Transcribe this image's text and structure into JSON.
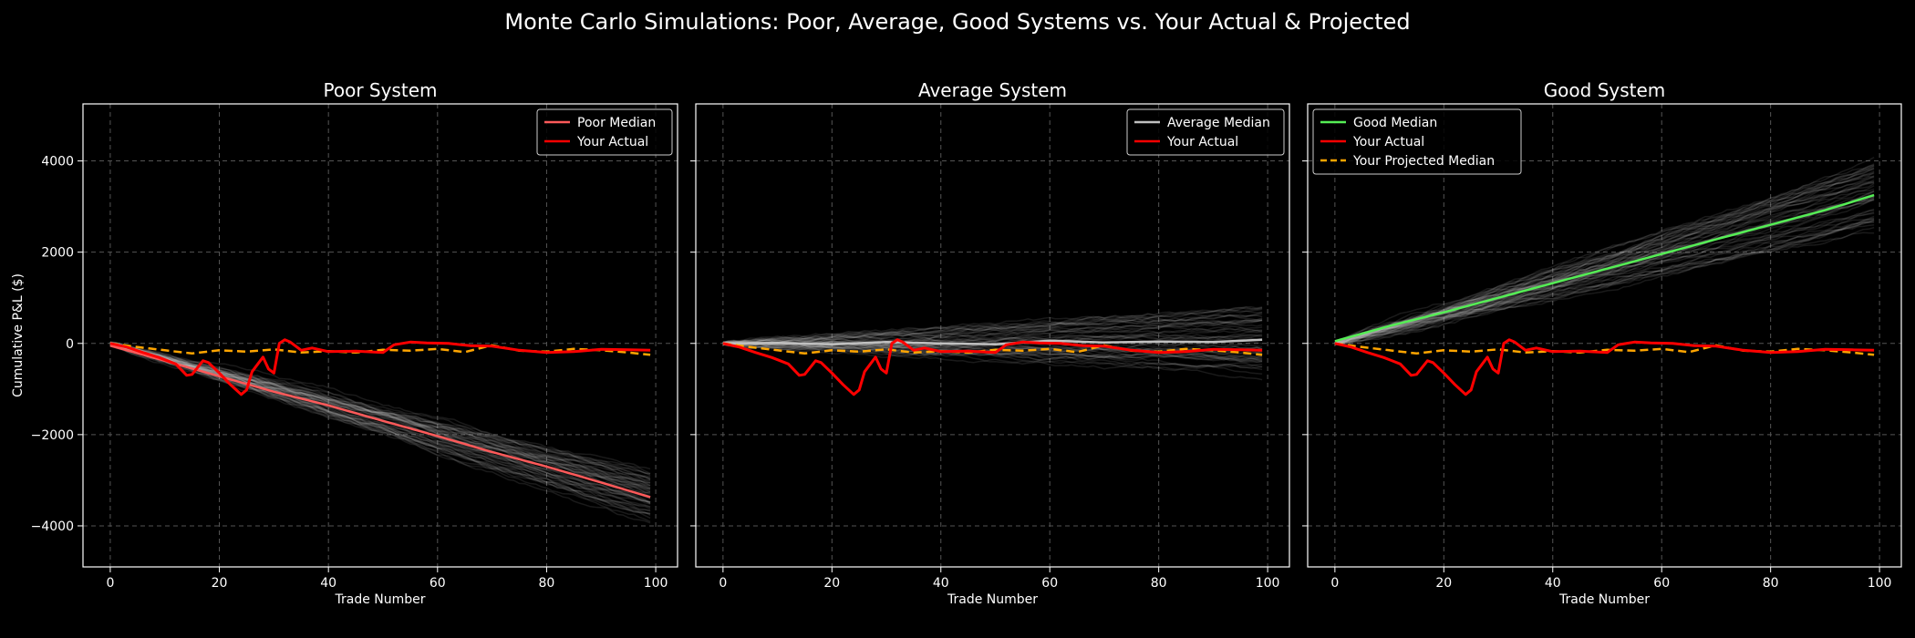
{
  "figure": {
    "title": "Monte Carlo Simulations: Poor, Average, Good Systems vs. Your Actual & Projected",
    "background": "#000000",
    "grid_color": "#555555",
    "sim_color": "#c8c8c8"
  },
  "chart_data": [
    {
      "type": "line",
      "title": "Poor System",
      "xlabel": "Trade Number",
      "ylabel": "Cumulative P&L ($)",
      "xlim": [
        -5,
        104
      ],
      "ylim": [
        -4900,
        5250
      ],
      "xticks": [
        0,
        20,
        40,
        60,
        80,
        100
      ],
      "yticks": [
        -4000,
        -2000,
        0,
        2000,
        4000
      ],
      "grid": true,
      "legend_position": "top-right",
      "simulations": {
        "count": 50,
        "start": 0,
        "end_median": -3370,
        "end_spread": 600
      },
      "series": [
        {
          "name": "Poor Median",
          "color": "#ff5a5a",
          "style": "solid",
          "x": [
            0,
            10,
            20,
            30,
            40,
            50,
            60,
            70,
            80,
            90,
            99
          ],
          "y": [
            -50,
            -380,
            -720,
            -1060,
            -1360,
            -1700,
            -2030,
            -2380,
            -2700,
            -3050,
            -3370
          ]
        },
        {
          "name": "Your Actual",
          "color": "#ff0000",
          "style": "solid",
          "ref": "actual"
        }
      ],
      "unlabeled_series": [
        {
          "color": "#ffa500",
          "style": "dashed",
          "ref": "projected"
        }
      ]
    },
    {
      "type": "line",
      "title": "Average System",
      "xlabel": "Trade Number",
      "ylabel": "",
      "xlim": [
        -5,
        104
      ],
      "ylim": [
        -4900,
        5250
      ],
      "xticks": [
        0,
        20,
        40,
        60,
        80,
        100
      ],
      "yticks": [
        -4000,
        -2000,
        0,
        2000,
        4000
      ],
      "grid": true,
      "legend_position": "top-right",
      "simulations": {
        "count": 50,
        "start": 0,
        "end_median": 80,
        "end_spread": 700
      },
      "series": [
        {
          "name": "Average Median",
          "color": "#c0c0c0",
          "style": "solid",
          "x": [
            0,
            10,
            20,
            30,
            40,
            50,
            60,
            70,
            80,
            90,
            99
          ],
          "y": [
            0,
            10,
            -20,
            30,
            0,
            -20,
            60,
            20,
            40,
            30,
            80
          ]
        },
        {
          "name": "Your Actual",
          "color": "#ff0000",
          "style": "solid",
          "ref": "actual"
        }
      ],
      "unlabeled_series": [
        {
          "color": "#ffa500",
          "style": "dashed",
          "ref": "projected"
        }
      ]
    },
    {
      "type": "line",
      "title": "Good System",
      "xlabel": "Trade Number",
      "ylabel": "",
      "xlim": [
        -5,
        104
      ],
      "ylim": [
        -4900,
        5250
      ],
      "xticks": [
        0,
        20,
        40,
        60,
        80,
        100
      ],
      "yticks": [
        -4000,
        -2000,
        0,
        2000,
        4000
      ],
      "grid": true,
      "legend_position": "top-left",
      "simulations": {
        "count": 50,
        "start": 0,
        "end_median": 3250,
        "end_spread": 800
      },
      "series": [
        {
          "name": "Good Median",
          "color": "#55ee55",
          "style": "solid",
          "x": [
            0,
            10,
            20,
            30,
            40,
            50,
            60,
            70,
            80,
            90,
            99
          ],
          "y": [
            50,
            380,
            680,
            1000,
            1320,
            1640,
            1960,
            2280,
            2600,
            2920,
            3250
          ]
        },
        {
          "name": "Your Actual",
          "color": "#ff0000",
          "style": "solid",
          "ref": "actual"
        },
        {
          "name": "Your Projected Median",
          "color": "#ffa500",
          "style": "dashed",
          "ref": "projected"
        }
      ]
    }
  ],
  "shared_series": {
    "actual": {
      "x": [
        0,
        3,
        6,
        9,
        12,
        14,
        15,
        17,
        18,
        20,
        22,
        24,
        25,
        26,
        28,
        29,
        30,
        31,
        32,
        33,
        35,
        37,
        40,
        45,
        50,
        52,
        55,
        58,
        62,
        66,
        70,
        75,
        80,
        85,
        90,
        95,
        99
      ],
      "y": [
        0,
        -80,
        -200,
        -310,
        -450,
        -700,
        -680,
        -380,
        -420,
        -650,
        -900,
        -1120,
        -1020,
        -620,
        -300,
        -560,
        -650,
        0,
        80,
        30,
        -150,
        -100,
        -180,
        -170,
        -200,
        -30,
        30,
        10,
        0,
        -50,
        -60,
        -150,
        -200,
        -180,
        -130,
        -140,
        -150
      ]
    },
    "projected": {
      "x": [
        0,
        5,
        10,
        15,
        20,
        25,
        30,
        35,
        40,
        45,
        50,
        55,
        60,
        65,
        70,
        75,
        80,
        85,
        90,
        95,
        99
      ],
      "y": [
        0,
        -80,
        -150,
        -220,
        -150,
        -180,
        -130,
        -200,
        -170,
        -200,
        -140,
        -160,
        -120,
        -190,
        -40,
        -160,
        -180,
        -120,
        -150,
        -200,
        -250
      ]
    }
  }
}
